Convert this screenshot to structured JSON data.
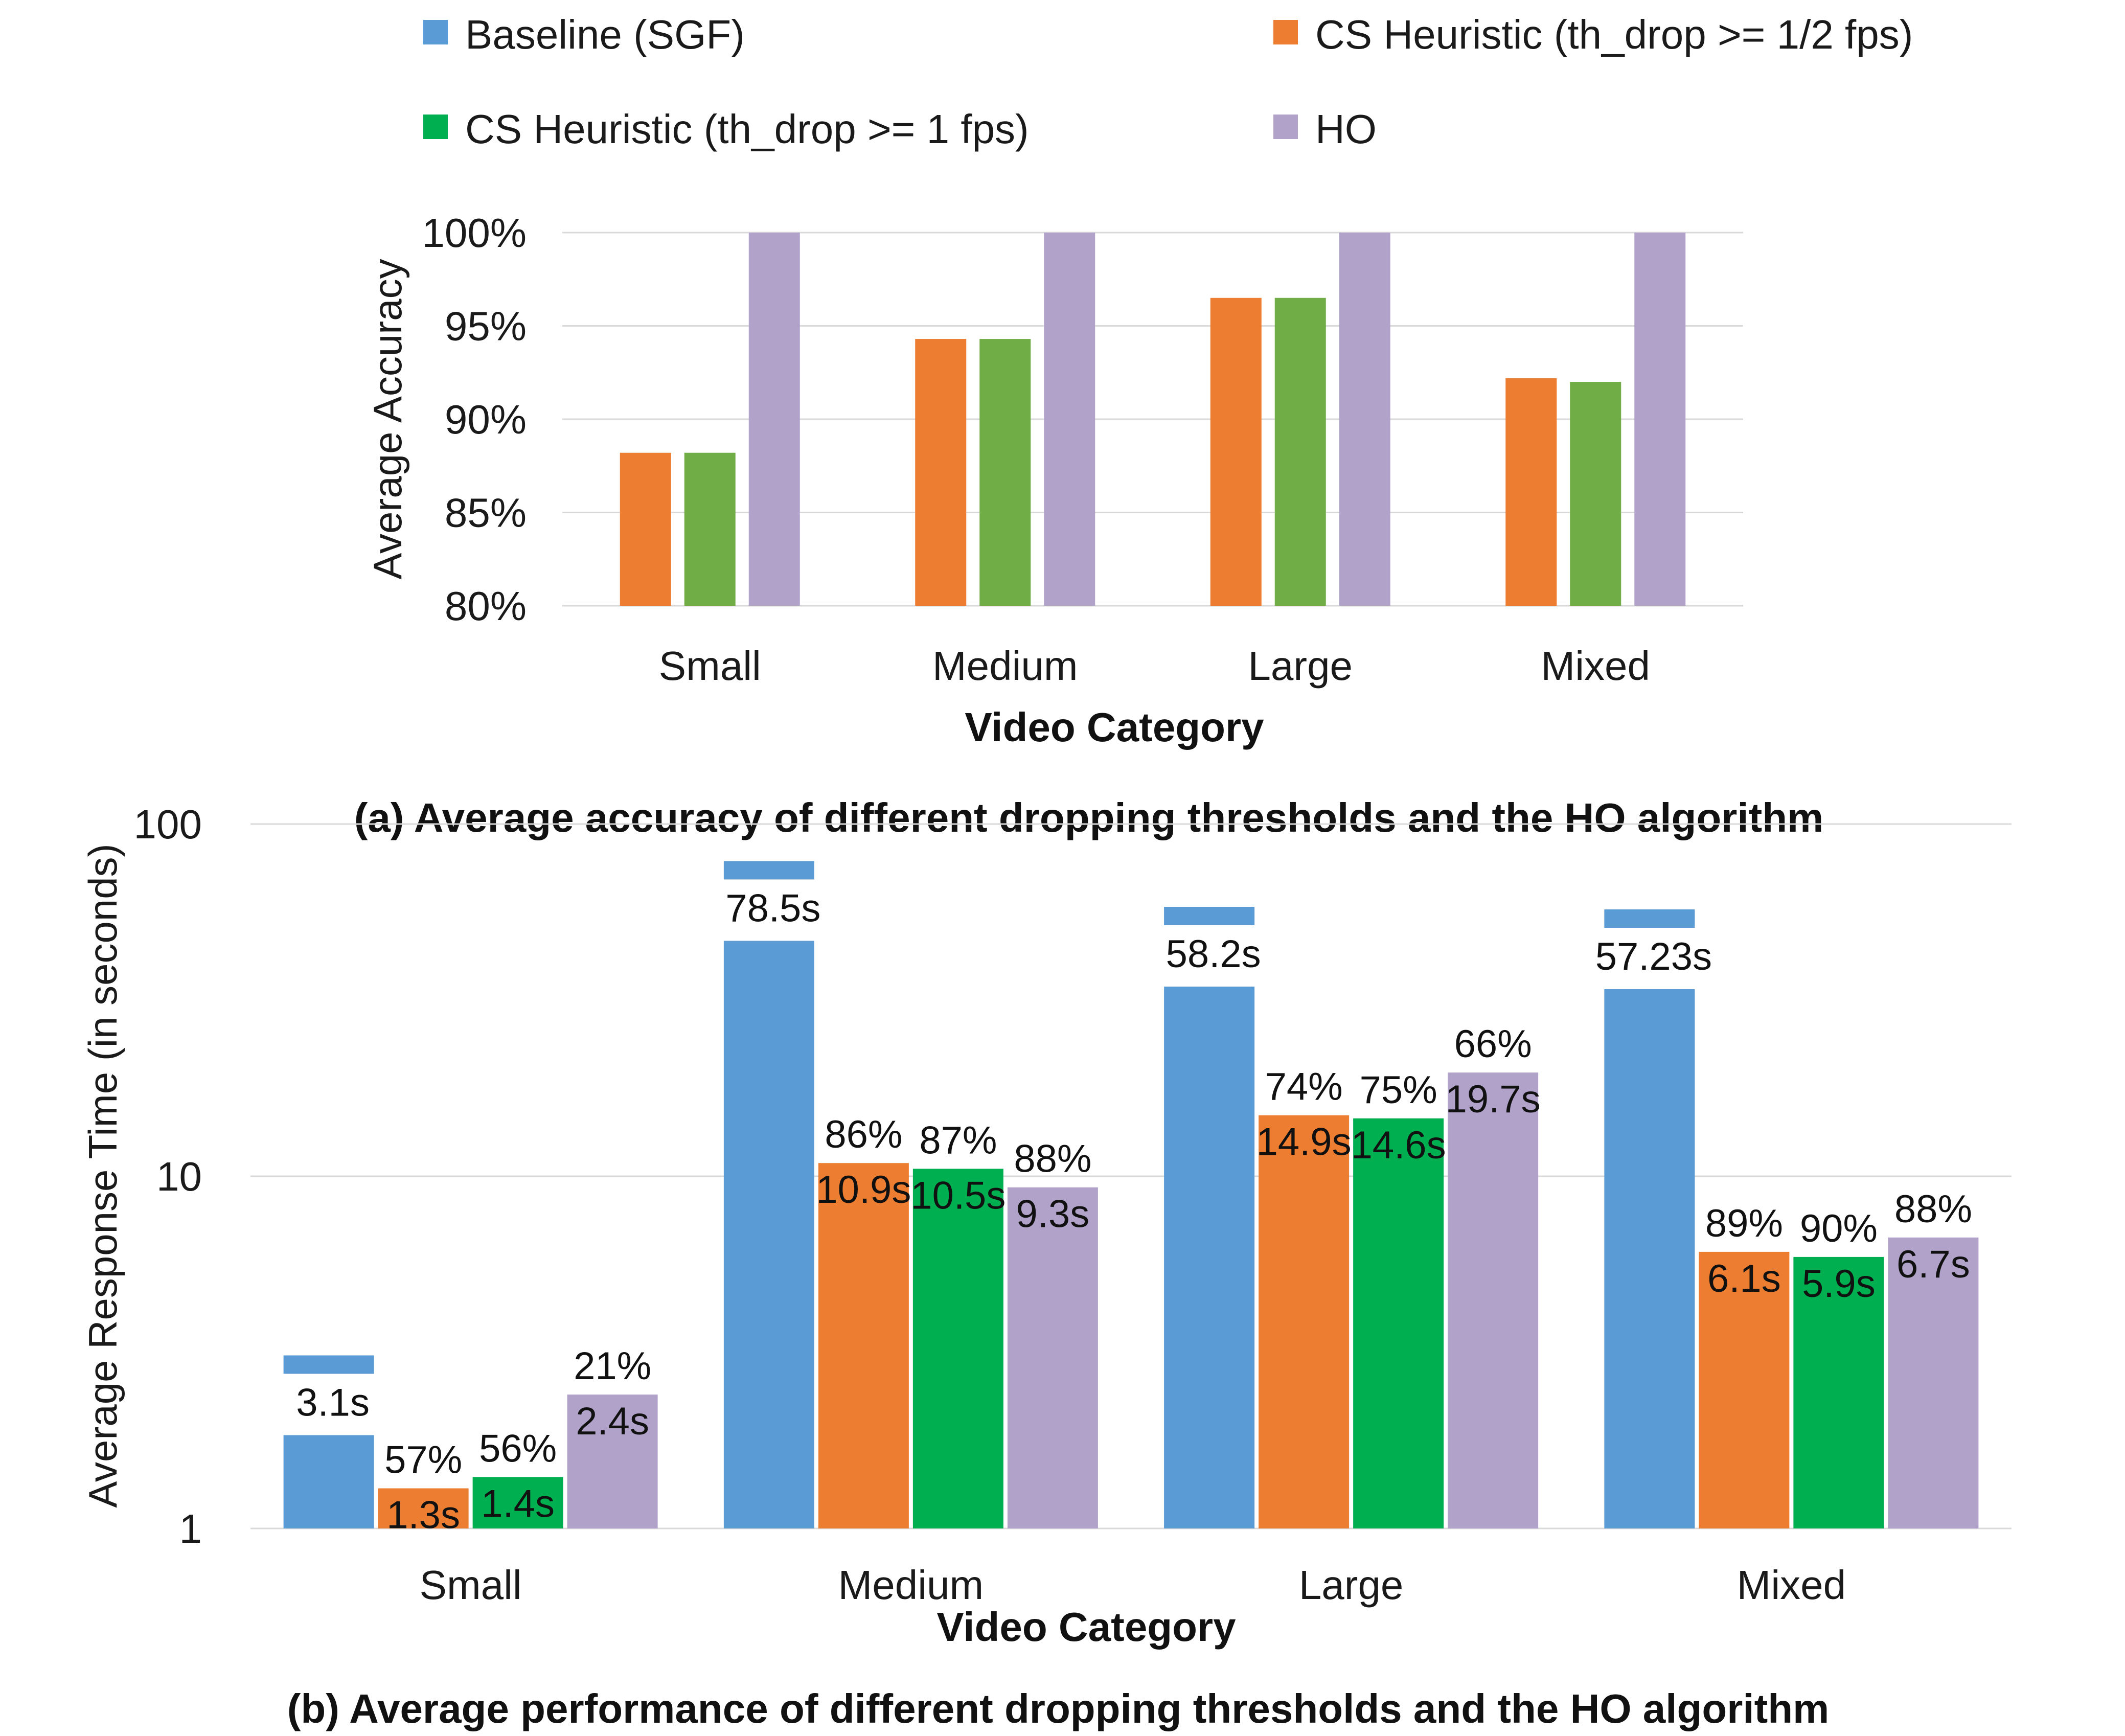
{
  "colors": {
    "baseline": "#5b9bd5",
    "cs_half": "#ed7d31",
    "cs_one_a": "#70ad47",
    "cs_one_b": "#00b050",
    "ho": "#b1a2c9"
  },
  "legend": [
    {
      "key": "baseline",
      "label": "Baseline (SGF)"
    },
    {
      "key": "cs_half",
      "label": "CS Heuristic (th_drop >= 1/2 fps)"
    },
    {
      "key": "cs_one",
      "label": "CS Heuristic (th_drop >= 1 fps)"
    },
    {
      "key": "ho",
      "label": "HO"
    }
  ],
  "chart_data": [
    {
      "type": "bar",
      "title": "(a) Average accuracy of different dropping thresholds and the HO algorithm",
      "xlabel": "Video Category",
      "ylabel": "Average Accuracy",
      "categories": [
        "Small",
        "Medium",
        "Large",
        "Mixed"
      ],
      "ylim": [
        80,
        100
      ],
      "yticks": [
        80,
        85,
        90,
        95,
        100
      ],
      "ytick_labels": [
        "80%",
        "85%",
        "90%",
        "95%",
        "100%"
      ],
      "series": [
        {
          "key": "cs_half",
          "name": "CS Heuristic (th_drop >= 1/2 fps)",
          "values": [
            88.2,
            94.3,
            96.5,
            92.2
          ]
        },
        {
          "key": "cs_one_a",
          "name": "CS Heuristic (th_drop >= 1 fps)",
          "values": [
            88.2,
            94.3,
            96.5,
            92.0
          ]
        },
        {
          "key": "ho",
          "name": "HO",
          "values": [
            100,
            100,
            100,
            100
          ]
        }
      ]
    },
    {
      "type": "bar",
      "scale": "log",
      "title": "(b) Average performance of different dropping thresholds and the HO algorithm",
      "xlabel": "Video Category",
      "ylabel": "Average Response Time (in seconds)",
      "categories": [
        "Small",
        "Medium",
        "Large",
        "Mixed"
      ],
      "ylim": [
        1,
        100
      ],
      "yticks": [
        1,
        10,
        100
      ],
      "ytick_labels": [
        "1",
        "10",
        "100"
      ],
      "series": [
        {
          "key": "baseline",
          "name": "Baseline (SGF)",
          "values": [
            3.1,
            78.5,
            58.2,
            57.23
          ],
          "labels": [
            "3.1s",
            "78.5s",
            "58.2s",
            "57.23s"
          ],
          "pct": [
            null,
            null,
            null,
            null
          ]
        },
        {
          "key": "cs_half",
          "name": "CS Heuristic (th_drop >= 1/2 fps)",
          "values": [
            1.3,
            10.9,
            14.9,
            6.1
          ],
          "labels": [
            "1.3s",
            "10.9s",
            "14.9s",
            "6.1s"
          ],
          "pct": [
            "57%",
            "86%",
            "74%",
            "89%"
          ]
        },
        {
          "key": "cs_one_b",
          "name": "CS Heuristic (th_drop >= 1 fps)",
          "values": [
            1.4,
            10.5,
            14.6,
            5.9
          ],
          "labels": [
            "1.4s",
            "10.5s",
            "14.6s",
            "5.9s"
          ],
          "pct": [
            "56%",
            "87%",
            "75%",
            "90%"
          ]
        },
        {
          "key": "ho",
          "name": "HO",
          "values": [
            2.4,
            9.3,
            19.7,
            6.7
          ],
          "labels": [
            "2.4s",
            "9.3s",
            "19.7s",
            "6.7s"
          ],
          "pct": [
            "21%",
            "88%",
            "66%",
            "88%"
          ]
        }
      ]
    }
  ]
}
